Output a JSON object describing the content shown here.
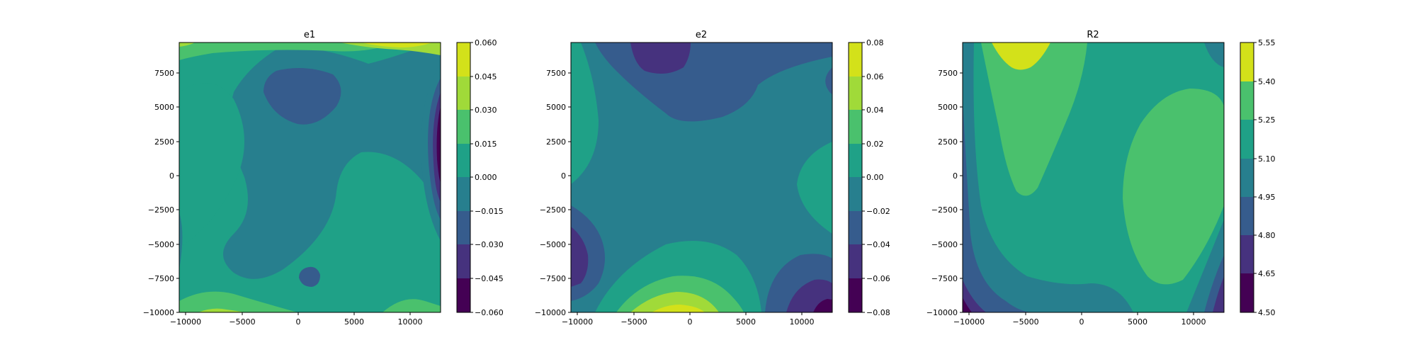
{
  "chart_data": [
    {
      "type": "contourf",
      "title": "e1",
      "xlim": [
        -10500,
        12800
      ],
      "ylim": [
        -10000,
        9700
      ],
      "xticks": [
        "−10000",
        "−5000",
        "0",
        "5000",
        "10000"
      ],
      "yticks": [
        "−10000",
        "−7500",
        "−5000",
        "−2500",
        "0",
        "2500",
        "5000",
        "7500"
      ],
      "colorbar_levels": [
        "−0.060",
        "−0.045",
        "−0.030",
        "−0.015",
        "0.000",
        "0.015",
        "0.030",
        "0.045",
        "0.060"
      ]
    },
    {
      "type": "contourf",
      "title": "e2",
      "xlim": [
        -10500,
        12800
      ],
      "ylim": [
        -10000,
        9700
      ],
      "xticks": [
        "−10000",
        "−5000",
        "0",
        "5000",
        "10000"
      ],
      "yticks": [
        "−10000",
        "−7500",
        "−5000",
        "−2500",
        "0",
        "2500",
        "5000",
        "7500"
      ],
      "colorbar_levels": [
        "−0.08",
        "−0.06",
        "−0.04",
        "−0.02",
        "0.00",
        "0.02",
        "0.04",
        "0.06",
        "0.08"
      ]
    },
    {
      "type": "contourf",
      "title": "R2",
      "xlim": [
        -10500,
        12800
      ],
      "ylim": [
        -10000,
        9700
      ],
      "xticks": [
        "−10000",
        "−5000",
        "0",
        "5000",
        "10000"
      ],
      "yticks": [
        "−10000",
        "−7500",
        "−5000",
        "−2500",
        "0",
        "2500",
        "5000",
        "7500"
      ],
      "colorbar_levels": [
        "4.50",
        "4.65",
        "4.80",
        "4.95",
        "5.10",
        "5.25",
        "5.40",
        "5.55"
      ]
    }
  ],
  "colors": {
    "viridis": [
      "#440154",
      "#46327e",
      "#365c8d",
      "#277f8e",
      "#1fa187",
      "#4ac16d",
      "#a0da39",
      "#d3e11a"
    ]
  }
}
